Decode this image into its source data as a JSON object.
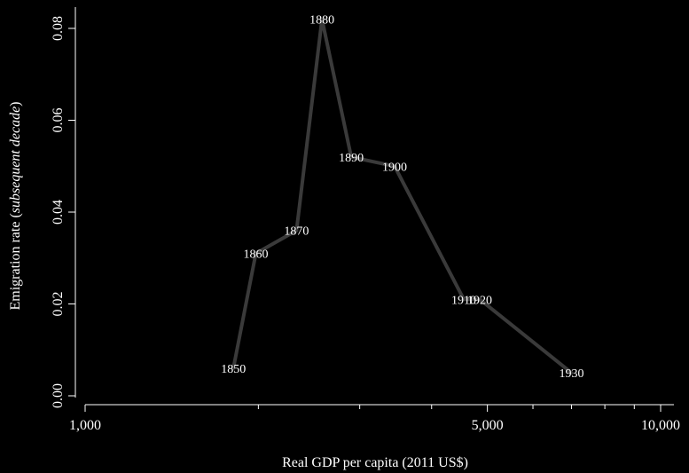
{
  "chart_data": {
    "type": "line",
    "xlabel": "Real GDP per capita (2011 US$)",
    "ylabel_prefix": "Emigration rate (",
    "ylabel_italic": "subsequent decade",
    "ylabel_suffix": ")",
    "x_scale": "log",
    "xlim": [
      1000,
      10000
    ],
    "ylim": [
      0.0,
      0.08
    ],
    "x_major_ticks": [
      {
        "value": 1000,
        "label": "1,000"
      },
      {
        "value": 5000,
        "label": "5,000"
      },
      {
        "value": 10000,
        "label": "10,000"
      }
    ],
    "x_minor_ticks": [
      2000,
      3000,
      4000,
      6000,
      7000,
      8000,
      9000
    ],
    "y_ticks": [
      {
        "value": 0.0,
        "label": "0.00"
      },
      {
        "value": 0.02,
        "label": "0.02"
      },
      {
        "value": 0.04,
        "label": "0.04"
      },
      {
        "value": 0.06,
        "label": "0.06"
      },
      {
        "value": 0.08,
        "label": "0.08"
      }
    ],
    "grid": false,
    "line_color": "#3a3a3a",
    "points": [
      {
        "label": "1850",
        "x": 1810,
        "y": 0.006
      },
      {
        "label": "1860",
        "x": 1980,
        "y": 0.031
      },
      {
        "label": "1870",
        "x": 2330,
        "y": 0.036
      },
      {
        "label": "1880",
        "x": 2580,
        "y": 0.082
      },
      {
        "label": "1890",
        "x": 2900,
        "y": 0.052
      },
      {
        "label": "1900",
        "x": 3450,
        "y": 0.05
      },
      {
        "label": "1910",
        "x": 4550,
        "y": 0.021
      },
      {
        "label": "1920",
        "x": 4850,
        "y": 0.021
      },
      {
        "label": "1930",
        "x": 7000,
        "y": 0.005
      }
    ]
  }
}
